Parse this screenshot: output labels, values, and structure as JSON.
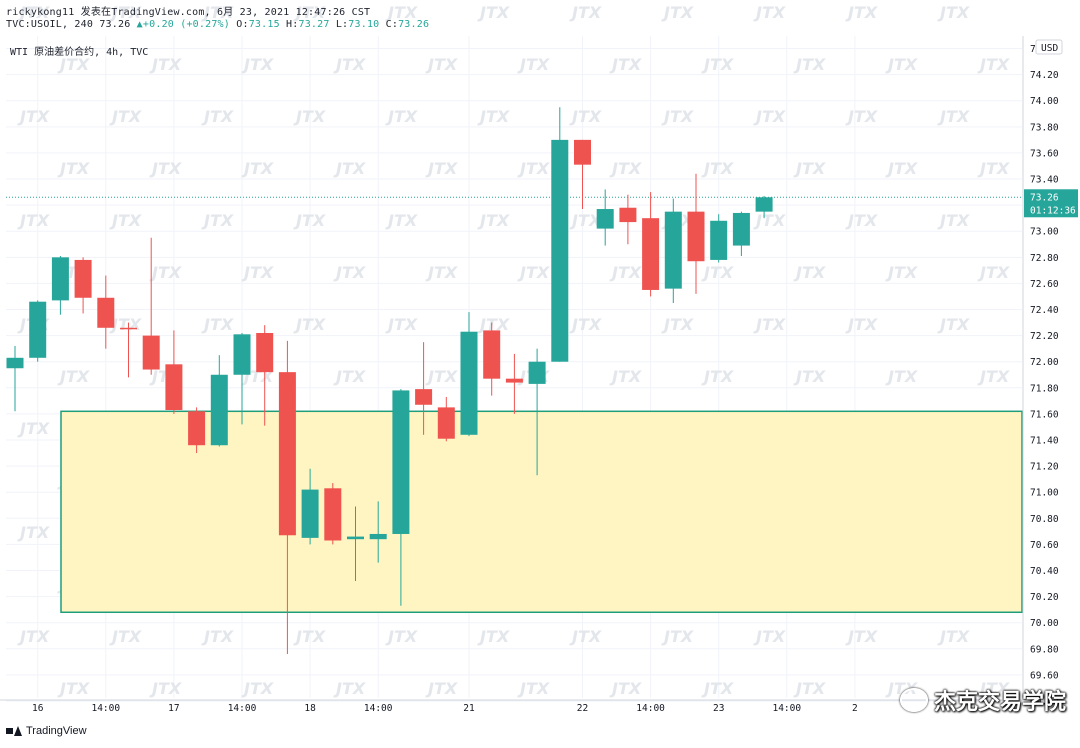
{
  "header": {
    "author_line": "rickykong11 发表在TradingView.com, 6月 23, 2021 12:47:26 CST",
    "symbol": "TVC:USOIL, 240",
    "last": "73.26",
    "change_arrow": "▲",
    "change": "+0.20 (+0.27%)",
    "ohlc_o_label": "O:",
    "ohlc_o": "73.15",
    "ohlc_h_label": "H:",
    "ohlc_h": "73.27",
    "ohlc_l_label": "L:",
    "ohlc_l": "73.10",
    "ohlc_c_label": "C:",
    "ohlc_c": "73.26"
  },
  "legend": "WTI 原油差价合约, 4h, TVC",
  "currency": "USD",
  "last_price_label": "73.26",
  "countdown_label": "01:12:36",
  "footer_logo": "TradingView",
  "brand": "杰克交易学院",
  "watermark_text": "JTX",
  "colors": {
    "up": "#26a69a",
    "down": "#ef5350",
    "zone_fill": "#fff5c2",
    "zone_border": "#1e9e7a",
    "grid": "#f0f3fa",
    "price_line": "#26a69a"
  },
  "chart_data": {
    "type": "candlestick",
    "ylim": [
      69.4,
      74.45
    ],
    "y_ticks": [
      "74.40",
      "74.20",
      "74.00",
      "73.80",
      "73.60",
      "73.40",
      "73.20",
      "73.00",
      "72.80",
      "72.60",
      "72.40",
      "72.20",
      "72.00",
      "71.80",
      "71.60",
      "71.40",
      "71.20",
      "71.00",
      "70.80",
      "70.60",
      "70.40",
      "70.20",
      "70.00",
      "69.80",
      "69.60",
      "69.40"
    ],
    "x_ticks": [
      {
        "label": "16",
        "index": 1
      },
      {
        "label": "14:00",
        "index": 4
      },
      {
        "label": "17",
        "index": 7
      },
      {
        "label": "14:00",
        "index": 10
      },
      {
        "label": "18",
        "index": 13
      },
      {
        "label": "14:00",
        "index": 16
      },
      {
        "label": "21",
        "index": 20
      },
      {
        "label": "22",
        "index": 25
      },
      {
        "label": "14:00",
        "index": 28
      },
      {
        "label": "23",
        "index": 31
      },
      {
        "label": "14:00",
        "index": 34
      },
      {
        "label": "2",
        "index": 37
      }
    ],
    "candles": [
      {
        "o": 71.95,
        "h": 72.12,
        "l": 71.62,
        "c": 72.03
      },
      {
        "o": 72.03,
        "h": 72.47,
        "l": 72.0,
        "c": 72.46
      },
      {
        "o": 72.47,
        "h": 72.81,
        "l": 72.36,
        "c": 72.8
      },
      {
        "o": 72.78,
        "h": 72.8,
        "l": 72.37,
        "c": 72.49
      },
      {
        "o": 72.49,
        "h": 72.66,
        "l": 72.1,
        "c": 72.26
      },
      {
        "o": 72.26,
        "h": 72.3,
        "l": 71.88,
        "c": 72.25
      },
      {
        "o": 72.2,
        "h": 72.95,
        "l": 71.9,
        "c": 71.94
      },
      {
        "o": 71.98,
        "h": 72.24,
        "l": 71.6,
        "c": 71.63
      },
      {
        "o": 71.62,
        "h": 71.65,
        "l": 71.3,
        "c": 71.36
      },
      {
        "o": 71.36,
        "h": 72.05,
        "l": 71.35,
        "c": 71.9
      },
      {
        "o": 71.9,
        "h": 72.22,
        "l": 71.52,
        "c": 72.21
      },
      {
        "o": 72.22,
        "h": 72.28,
        "l": 71.51,
        "c": 71.92
      },
      {
        "o": 71.92,
        "h": 72.16,
        "l": 69.76,
        "c": 70.67
      },
      {
        "o": 70.65,
        "h": 71.18,
        "l": 70.6,
        "c": 71.02
      },
      {
        "o": 71.03,
        "h": 71.07,
        "l": 70.6,
        "c": 70.63
      },
      {
        "o": 70.64,
        "h": 70.89,
        "l": 70.32,
        "c": 70.66
      },
      {
        "o": 70.64,
        "h": 70.93,
        "l": 70.46,
        "c": 70.68
      },
      {
        "o": 70.68,
        "h": 71.79,
        "l": 70.13,
        "c": 71.78
      },
      {
        "o": 71.79,
        "h": 72.15,
        "l": 71.44,
        "c": 71.67
      },
      {
        "o": 71.65,
        "h": 71.73,
        "l": 71.39,
        "c": 71.41
      },
      {
        "o": 71.44,
        "h": 72.38,
        "l": 71.43,
        "c": 72.23
      },
      {
        "o": 72.24,
        "h": 72.3,
        "l": 71.74,
        "c": 71.87
      },
      {
        "o": 71.87,
        "h": 72.06,
        "l": 71.6,
        "c": 71.84
      },
      {
        "o": 71.83,
        "h": 72.1,
        "l": 71.13,
        "c": 72.0
      },
      {
        "o": 72.0,
        "h": 73.95,
        "l": 72.0,
        "c": 73.7
      },
      {
        "o": 73.7,
        "h": 73.7,
        "l": 73.17,
        "c": 73.51
      },
      {
        "o": 73.02,
        "h": 73.32,
        "l": 72.89,
        "c": 73.17
      },
      {
        "o": 73.18,
        "h": 73.28,
        "l": 72.9,
        "c": 73.07
      },
      {
        "o": 73.1,
        "h": 73.3,
        "l": 72.5,
        "c": 72.55
      },
      {
        "o": 72.56,
        "h": 73.25,
        "l": 72.45,
        "c": 73.15
      },
      {
        "o": 73.15,
        "h": 73.44,
        "l": 72.52,
        "c": 72.77
      },
      {
        "o": 72.78,
        "h": 73.13,
        "l": 72.76,
        "c": 73.08
      },
      {
        "o": 72.89,
        "h": 73.15,
        "l": 72.81,
        "c": 73.14
      },
      {
        "o": 73.15,
        "h": 73.27,
        "l": 73.1,
        "c": 73.26
      }
    ],
    "zone": {
      "top": 71.62,
      "bottom": 70.08
    },
    "current_price": 73.26
  }
}
